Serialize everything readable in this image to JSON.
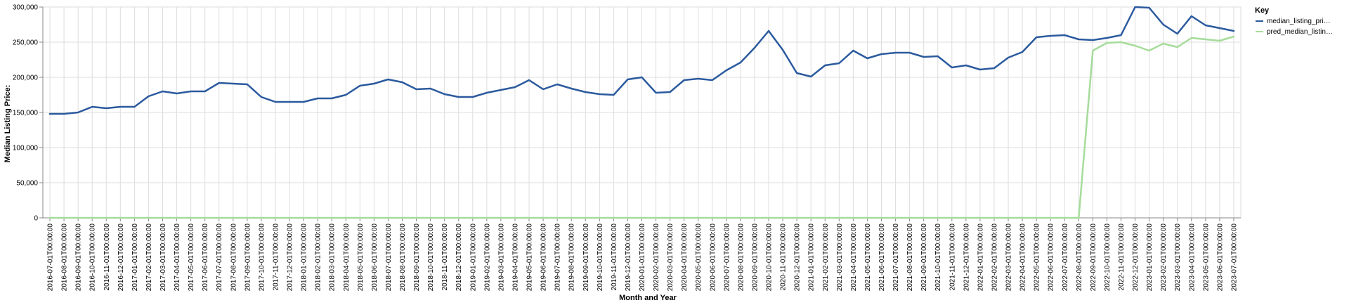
{
  "chart_data": {
    "type": "line",
    "xlabel": "Month and Year",
    "ylabel": "Median Listing Price:",
    "ylim": [
      0,
      300000
    ],
    "yticks": [
      "0",
      "50,000",
      "100,000",
      "150,000",
      "200,000",
      "250,000",
      "300,000"
    ],
    "grid": true,
    "legend": {
      "title": "Key",
      "placement": "right",
      "entries": [
        {
          "label": "median_listing_pri…",
          "series": "median_listing_pri…"
        },
        {
          "label": "pred_median_listin…",
          "series": "pred_median_listin…"
        }
      ]
    },
    "x": [
      "2016-07-01T00:00:00",
      "2016-08-01T00:00:00",
      "2016-09-01T00:00:00",
      "2016-10-01T00:00:00",
      "2016-11-01T00:00:00",
      "2016-12-01T00:00:00",
      "2017-01-01T00:00:00",
      "2017-02-01T00:00:00",
      "2017-03-01T00:00:00",
      "2017-04-01T00:00:00",
      "2017-05-01T00:00:00",
      "2017-06-01T00:00:00",
      "2017-07-01T00:00:00",
      "2017-08-01T00:00:00",
      "2017-09-01T00:00:00",
      "2017-10-01T00:00:00",
      "2017-11-01T00:00:00",
      "2017-12-01T00:00:00",
      "2018-01-01T00:00:00",
      "2018-02-01T00:00:00",
      "2018-03-01T00:00:00",
      "2018-04-01T00:00:00",
      "2018-05-01T00:00:00",
      "2018-06-01T00:00:00",
      "2018-07-01T00:00:00",
      "2018-08-01T00:00:00",
      "2018-09-01T00:00:00",
      "2018-10-01T00:00:00",
      "2018-11-01T00:00:00",
      "2018-12-01T00:00:00",
      "2019-01-01T00:00:00",
      "2019-02-01T00:00:00",
      "2019-03-01T00:00:00",
      "2019-04-01T00:00:00",
      "2019-05-01T00:00:00",
      "2019-06-01T00:00:00",
      "2019-07-01T00:00:00",
      "2019-08-01T00:00:00",
      "2019-09-01T00:00:00",
      "2019-10-01T00:00:00",
      "2019-11-01T00:00:00",
      "2019-12-01T00:00:00",
      "2020-01-01T00:00:00",
      "2020-02-01T00:00:00",
      "2020-03-01T00:00:00",
      "2020-04-01T00:00:00",
      "2020-05-01T00:00:00",
      "2020-06-01T00:00:00",
      "2020-07-01T00:00:00",
      "2020-08-01T00:00:00",
      "2020-09-01T00:00:00",
      "2020-10-01T00:00:00",
      "2020-11-01T00:00:00",
      "2020-12-01T00:00:00",
      "2021-01-01T00:00:00",
      "2021-02-01T00:00:00",
      "2021-03-01T00:00:00",
      "2021-04-01T00:00:00",
      "2021-05-01T00:00:00",
      "2021-06-01T00:00:00",
      "2021-07-01T00:00:00",
      "2021-08-01T00:00:00",
      "2021-09-01T00:00:00",
      "2021-10-01T00:00:00",
      "2021-11-01T00:00:00",
      "2021-12-01T00:00:00",
      "2022-01-01T00:00:00",
      "2022-02-01T00:00:00",
      "2022-03-01T00:00:00",
      "2022-04-01T00:00:00",
      "2022-05-01T00:00:00",
      "2022-06-01T00:00:00",
      "2022-07-01T00:00:00",
      "2022-08-01T00:00:00",
      "2022-09-01T00:00:00",
      "2022-10-01T00:00:00",
      "2022-11-01T00:00:00",
      "2022-12-01T00:00:00",
      "2023-01-01T00:00:00",
      "2023-02-01T00:00:00",
      "2023-03-01T00:00:00",
      "2023-04-01T00:00:00",
      "2023-05-01T00:00:00",
      "2023-06-01T00:00:00",
      "2023-07-01T00:00:00"
    ],
    "series": [
      {
        "name": "median_listing_pri…",
        "color": "#2b5a9e",
        "values": [
          148000,
          148000,
          150000,
          158000,
          156000,
          158000,
          158000,
          173000,
          180000,
          177000,
          180000,
          180000,
          192000,
          191000,
          190000,
          172000,
          165000,
          165000,
          165000,
          170000,
          170000,
          175000,
          188000,
          191000,
          197000,
          193000,
          183000,
          184000,
          176000,
          172000,
          172000,
          178000,
          182000,
          186000,
          196000,
          183000,
          190000,
          184000,
          179000,
          176000,
          175000,
          197000,
          200000,
          178000,
          179000,
          196000,
          198000,
          196000,
          210000,
          221000,
          242000,
          266000,
          239000,
          206000,
          201000,
          217000,
          220000,
          238000,
          227000,
          233000,
          235000,
          235000,
          229000,
          230000,
          214000,
          217000,
          211000,
          213000,
          228000,
          236000,
          257000,
          259000,
          260000,
          254000,
          253000,
          256000,
          260000,
          300000,
          299000,
          275000,
          262000,
          287000,
          274000,
          270000,
          266000
        ]
      },
      {
        "name": "pred_median_listin…",
        "color": "#a6dc9a",
        "values": [
          0,
          0,
          0,
          0,
          0,
          0,
          0,
          0,
          0,
          0,
          0,
          0,
          0,
          0,
          0,
          0,
          0,
          0,
          0,
          0,
          0,
          0,
          0,
          0,
          0,
          0,
          0,
          0,
          0,
          0,
          0,
          0,
          0,
          0,
          0,
          0,
          0,
          0,
          0,
          0,
          0,
          0,
          0,
          0,
          0,
          0,
          0,
          0,
          0,
          0,
          0,
          0,
          0,
          0,
          0,
          0,
          0,
          0,
          0,
          0,
          0,
          0,
          0,
          0,
          0,
          0,
          0,
          0,
          0,
          0,
          0,
          0,
          0,
          0,
          238000,
          249000,
          250000,
          245000,
          238000,
          248000,
          243000,
          256000,
          254000,
          252000,
          258000
        ]
      }
    ]
  }
}
